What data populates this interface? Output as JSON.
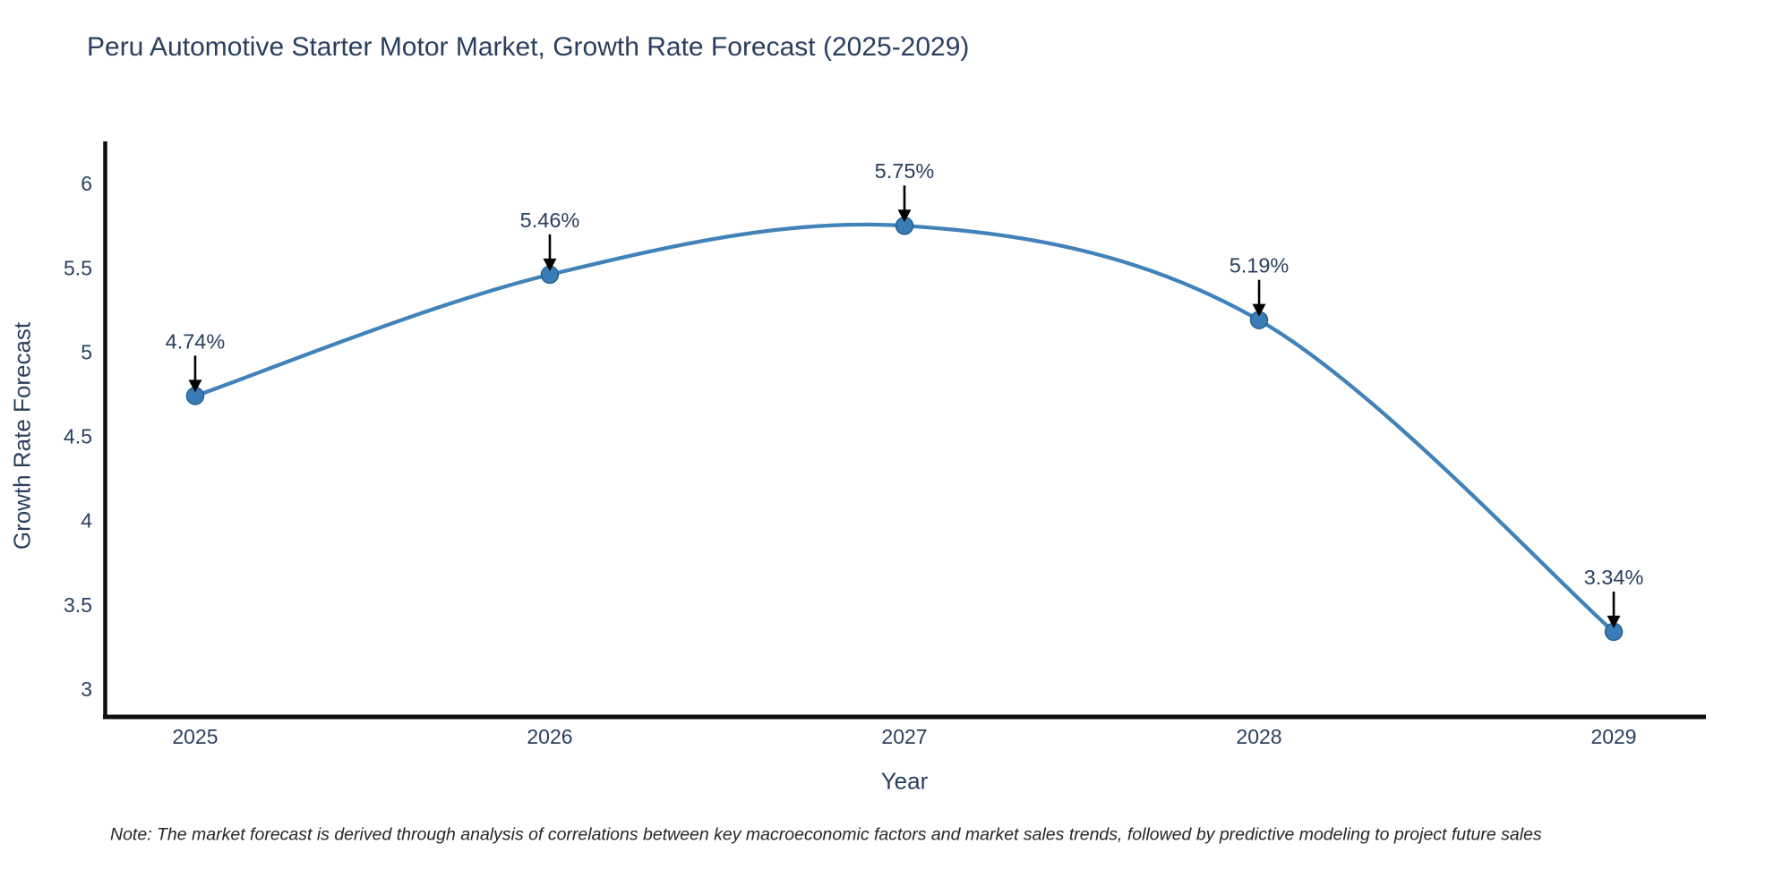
{
  "chart_data": {
    "type": "line",
    "line_shape": "spline",
    "title": "Peru Automotive Starter Motor Market, Growth Rate Forecast (2025-2029)",
    "xlabel": "Year",
    "ylabel": "Growth Rate Forecast",
    "x": [
      2025,
      2026,
      2027,
      2028,
      2029
    ],
    "values": [
      4.74,
      5.46,
      5.75,
      5.19,
      3.34
    ],
    "point_labels": [
      "4.74%",
      "5.46%",
      "5.75%",
      "5.19%",
      "3.34%"
    ],
    "x_ticks": [
      "2025",
      "2026",
      "2027",
      "2028",
      "2029"
    ],
    "y_ticks": [
      3,
      3.5,
      4,
      4.5,
      5,
      5.5,
      6
    ],
    "xlim": [
      2024.74,
      2029.26
    ],
    "ylim": [
      2.835,
      6.24
    ],
    "grid": false,
    "legend": false,
    "annotations_style": "arrow-down-to-point",
    "colors": {
      "line": "#4183b8",
      "marker_fill": "#3a7cb8",
      "marker_edge": "#27628f",
      "arrow": "#000000",
      "axis": "#0f0f0f",
      "text": "#2a3f5f",
      "note_text": "#262626"
    }
  },
  "footer": {
    "note": "Note: The market forecast is derived through analysis of correlations between key macroeconomic factors and market sales trends, followed by predictive modeling to project future sales"
  }
}
